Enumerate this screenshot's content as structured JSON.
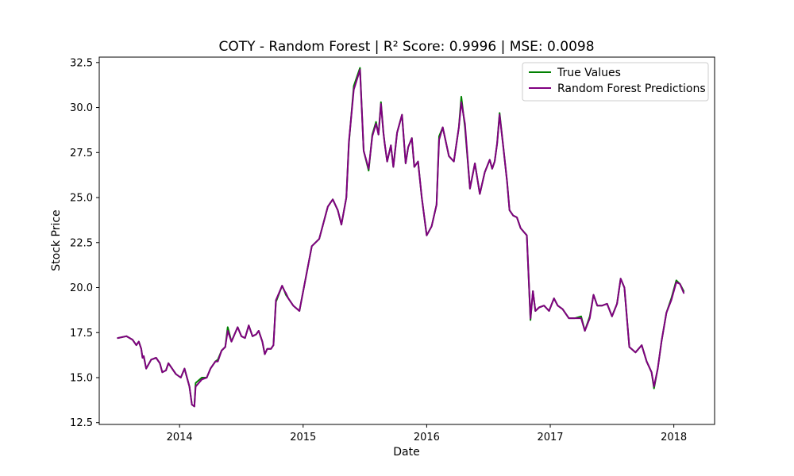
{
  "chart_data": {
    "type": "line",
    "title": "COTY - Random Forest | R² Score: 0.9996 | MSE: 0.0098",
    "xlabel": "Date",
    "ylabel": "Stock Price",
    "xlim": [
      2013.35,
      2018.33
    ],
    "ylim": [
      12.4,
      32.8
    ],
    "x_ticks": [
      2014,
      2015,
      2016,
      2017,
      2018
    ],
    "x_tick_labels": [
      "2014",
      "2015",
      "2016",
      "2017",
      "2018"
    ],
    "y_ticks": [
      12.5,
      15.0,
      17.5,
      20.0,
      22.5,
      25.0,
      27.5,
      30.0,
      32.5
    ],
    "y_tick_labels": [
      "12.5",
      "15.0",
      "17.5",
      "20.0",
      "22.5",
      "25.0",
      "27.5",
      "30.0",
      "32.5"
    ],
    "legend_position": "top-right",
    "grid": false,
    "x": [
      2013.5,
      2013.57,
      2013.62,
      2013.65,
      2013.67,
      2013.69,
      2013.7,
      2013.71,
      2013.73,
      2013.77,
      2013.81,
      2013.84,
      2013.86,
      2013.89,
      2013.91,
      2013.93,
      2013.97,
      2014.01,
      2014.04,
      2014.08,
      2014.1,
      2014.12,
      2014.13,
      2014.18,
      2014.22,
      2014.25,
      2014.29,
      2014.31,
      2014.34,
      2014.37,
      2014.39,
      2014.42,
      2014.47,
      2014.5,
      2014.53,
      2014.56,
      2014.59,
      2014.62,
      2014.64,
      2014.67,
      2014.69,
      2014.71,
      2014.74,
      2014.76,
      2014.78,
      2014.83,
      2014.85,
      2014.86,
      2014.88,
      2014.92,
      2014.97,
      2015.07,
      2015.13,
      2015.2,
      2015.24,
      2015.28,
      2015.31,
      2015.35,
      2015.37,
      2015.41,
      2015.46,
      2015.49,
      2015.53,
      2015.56,
      2015.59,
      2015.61,
      2015.63,
      2015.65,
      2015.66,
      2015.68,
      2015.71,
      2015.73,
      2015.76,
      2015.8,
      2015.83,
      2015.85,
      2015.88,
      2015.9,
      2015.93,
      2015.96,
      2016.0,
      2016.04,
      2016.08,
      2016.1,
      2016.13,
      2016.18,
      2016.22,
      2016.26,
      2016.28,
      2016.31,
      2016.35,
      2016.39,
      2016.43,
      2016.47,
      2016.51,
      2016.53,
      2016.55,
      2016.57,
      2016.59,
      2016.62,
      2016.65,
      2016.67,
      2016.7,
      2016.73,
      2016.76,
      2016.81,
      2016.84,
      2016.86,
      2016.88,
      2016.91,
      2016.95,
      2016.99,
      2017.03,
      2017.06,
      2017.1,
      2017.15,
      2017.2,
      2017.25,
      2017.28,
      2017.32,
      2017.35,
      2017.38,
      2017.42,
      2017.46,
      2017.5,
      2017.54,
      2017.57,
      2017.6,
      2017.64,
      2017.69,
      2017.74,
      2017.78,
      2017.82,
      2017.84,
      2017.87,
      2017.9,
      2017.94,
      2017.98,
      2018.02,
      2018.05,
      2018.08
    ],
    "series": [
      {
        "name": "True Values",
        "color": "#008000",
        "values": [
          17.2,
          17.3,
          17.1,
          16.8,
          17.0,
          16.6,
          16.1,
          16.2,
          15.5,
          16.0,
          16.1,
          15.8,
          15.3,
          15.4,
          15.8,
          15.6,
          15.2,
          15.0,
          15.5,
          14.5,
          13.5,
          13.4,
          14.7,
          15.0,
          15.0,
          15.5,
          15.9,
          16.0,
          16.5,
          16.7,
          17.8,
          17.0,
          17.8,
          17.3,
          17.2,
          17.9,
          17.3,
          17.4,
          17.6,
          17.0,
          16.3,
          16.6,
          16.6,
          16.8,
          19.2,
          20.1,
          19.8,
          19.6,
          19.4,
          19.0,
          18.7,
          22.3,
          22.7,
          24.5,
          24.9,
          24.3,
          23.5,
          25.0,
          28.0,
          31.2,
          32.2,
          27.6,
          26.5,
          28.5,
          29.2,
          28.5,
          30.3,
          28.6,
          28.0,
          27.0,
          27.9,
          26.7,
          28.6,
          29.6,
          26.9,
          27.8,
          28.3,
          26.7,
          27.0,
          25.0,
          22.9,
          23.4,
          24.6,
          28.4,
          28.9,
          27.3,
          27.0,
          28.9,
          30.6,
          28.9,
          25.5,
          26.9,
          25.2,
          26.4,
          27.1,
          26.6,
          27.0,
          28.0,
          29.7,
          27.8,
          25.9,
          24.3,
          24.0,
          23.9,
          23.3,
          22.9,
          18.2,
          19.8,
          18.7,
          18.9,
          19.0,
          18.7,
          19.4,
          19.0,
          18.8,
          18.3,
          18.3,
          18.4,
          17.6,
          18.4,
          19.6,
          19.0,
          19.0,
          19.1,
          18.4,
          19.1,
          20.5,
          20.0,
          16.7,
          16.4,
          16.8,
          15.9,
          15.3,
          14.4,
          15.5,
          17.0,
          18.6,
          19.4,
          20.4,
          20.2,
          19.8
        ]
      },
      {
        "name": "Random Forest Predictions",
        "color": "#800080",
        "values": [
          17.2,
          17.3,
          17.1,
          16.8,
          17.0,
          16.6,
          16.1,
          16.2,
          15.5,
          16.0,
          16.1,
          15.8,
          15.3,
          15.4,
          15.8,
          15.6,
          15.2,
          15.0,
          15.5,
          14.5,
          13.5,
          13.4,
          14.5,
          14.9,
          15.0,
          15.5,
          15.9,
          15.9,
          16.5,
          16.7,
          17.6,
          17.0,
          17.8,
          17.3,
          17.2,
          17.9,
          17.3,
          17.4,
          17.6,
          17.0,
          16.3,
          16.6,
          16.6,
          16.8,
          19.3,
          20.1,
          19.8,
          19.7,
          19.4,
          19.0,
          18.7,
          22.3,
          22.7,
          24.5,
          24.9,
          24.3,
          23.5,
          25.0,
          28.1,
          31.0,
          32.1,
          27.6,
          26.6,
          28.4,
          29.1,
          28.5,
          30.2,
          28.6,
          28.0,
          27.0,
          27.9,
          26.7,
          28.6,
          29.6,
          26.9,
          27.8,
          28.3,
          26.7,
          27.0,
          25.0,
          22.9,
          23.4,
          24.6,
          28.2,
          28.9,
          27.3,
          27.0,
          28.9,
          30.3,
          29.1,
          25.5,
          26.9,
          25.2,
          26.4,
          27.1,
          26.6,
          27.0,
          28.0,
          29.6,
          27.8,
          25.9,
          24.3,
          24.0,
          23.9,
          23.3,
          22.9,
          18.3,
          19.8,
          18.7,
          18.9,
          19.0,
          18.7,
          19.4,
          19.0,
          18.8,
          18.3,
          18.3,
          18.3,
          17.6,
          18.3,
          19.6,
          19.0,
          19.0,
          19.1,
          18.4,
          19.1,
          20.5,
          20.0,
          16.7,
          16.4,
          16.8,
          15.9,
          15.3,
          14.5,
          15.5,
          17.0,
          18.6,
          19.3,
          20.3,
          20.2,
          19.7
        ]
      }
    ]
  }
}
